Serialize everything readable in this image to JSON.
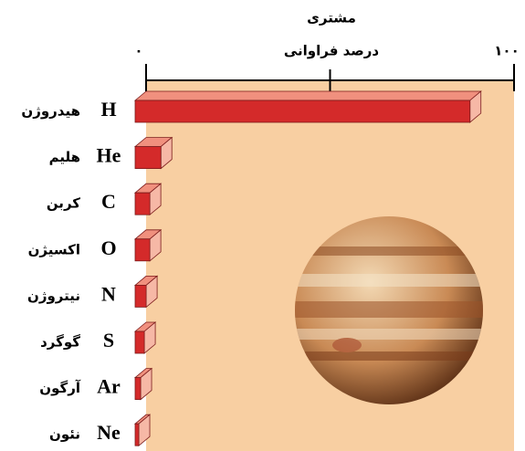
{
  "chart_data": {
    "type": "bar3d",
    "title": "مشتری",
    "x_label": "درصد فراوانی",
    "categories": [
      "H",
      "He",
      "C",
      "O",
      "N",
      "S",
      "Ar",
      "Ne"
    ],
    "category_names": [
      "هیدروژن",
      "هلیم",
      "کربن",
      "اکسیژن",
      "نیتروژن",
      "گوگرد",
      "آرگون",
      "نئون"
    ],
    "values": [
      91,
      7,
      4,
      4,
      3,
      2.5,
      1.5,
      1
    ],
    "color": "#d42a2a",
    "xlim": [
      0,
      100
    ],
    "xticks": [
      {
        "value": 0,
        "label": "۰"
      },
      {
        "value": 100,
        "label": "۱۰۰"
      }
    ],
    "xminor_ticks": [
      50
    ]
  }
}
